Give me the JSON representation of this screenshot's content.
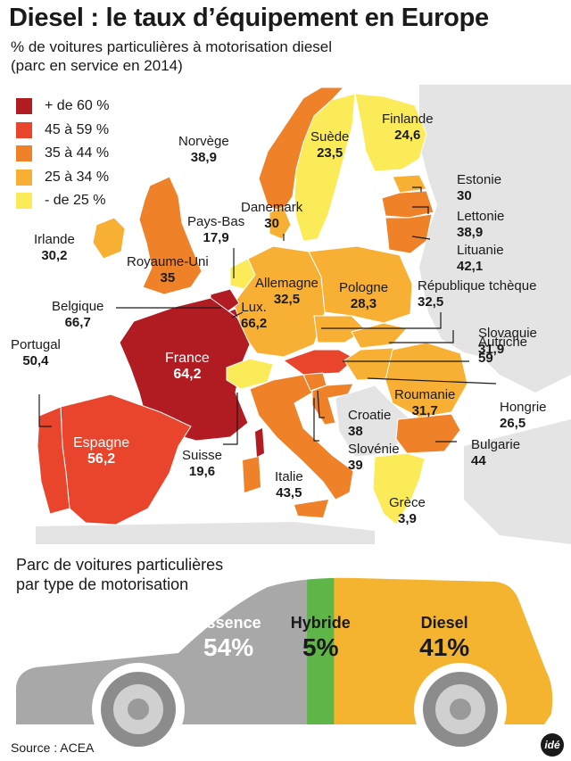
{
  "title": "Diesel : le taux d’équipement en Europe",
  "subtitle_line1": "% de voitures particulières à motorisation diesel",
  "subtitle_line2": "(parc en service en 2014)",
  "legend": [
    {
      "label": "+ de 60 %",
      "color": "#b01c22"
    },
    {
      "label": "45 à 59 %",
      "color": "#e8452c"
    },
    {
      "label": "35 à 44 %",
      "color": "#ef8128"
    },
    {
      "label": "25 à 34 %",
      "color": "#f7b034"
    },
    {
      "label": "- de 25 %",
      "color": "#fbeb59"
    }
  ],
  "countries": [
    {
      "name": "Norvège",
      "value": "38,9"
    },
    {
      "name": "Suède",
      "value": "23,5"
    },
    {
      "name": "Finlande",
      "value": "24,6"
    },
    {
      "name": "Estonie",
      "value": "30"
    },
    {
      "name": "Lettonie",
      "value": "38,9"
    },
    {
      "name": "Lituanie",
      "value": "42,1"
    },
    {
      "name": "Danemark",
      "value": "30"
    },
    {
      "name": "Irlande",
      "value": "30,2"
    },
    {
      "name": "Royaume-Uni",
      "value": "35"
    },
    {
      "name": "Pays-Bas",
      "value": "17,9"
    },
    {
      "name": "Allemagne",
      "value": "32,5"
    },
    {
      "name": "Pologne",
      "value": "28,3"
    },
    {
      "name": "République tchèque",
      "value": "32,5"
    },
    {
      "name": "Belgique",
      "value": "66,7"
    },
    {
      "name": "Lux.",
      "value": "66,2"
    },
    {
      "name": "Slovaquie",
      "value": "31,9"
    },
    {
      "name": "Autriche",
      "value": "59"
    },
    {
      "name": "Portugal",
      "value": "50,4"
    },
    {
      "name": "France",
      "value": "64,2"
    },
    {
      "name": "Hongrie",
      "value": "26,5"
    },
    {
      "name": "Roumanie",
      "value": "31,7"
    },
    {
      "name": "Croatie",
      "value": "38"
    },
    {
      "name": "Slovénie",
      "value": "39"
    },
    {
      "name": "Bulgarie",
      "value": "44"
    },
    {
      "name": "Espagne",
      "value": "56,2"
    },
    {
      "name": "Suisse",
      "value": "19,6"
    },
    {
      "name": "Italie",
      "value": "43,5"
    },
    {
      "name": "Grèce",
      "value": "3,9"
    }
  ],
  "motorisation": {
    "title_line1": "Parc de voitures particulières",
    "title_line2": "par type de motorisation",
    "segments": [
      {
        "name": "Essence",
        "pct": "54%",
        "share": 54,
        "color": "#a8a8a8",
        "label_color": "#ffffff"
      },
      {
        "name": "Hybride",
        "pct": "5%",
        "share": 5,
        "color": "#5eb548",
        "label_color": "#1a1a1a"
      },
      {
        "name": "Diesel",
        "pct": "41%",
        "share": 41,
        "color": "#f5b42f",
        "label_color": "#1a1a1a"
      }
    ]
  },
  "source": "Source : ACEA",
  "logo_text": "idé"
}
